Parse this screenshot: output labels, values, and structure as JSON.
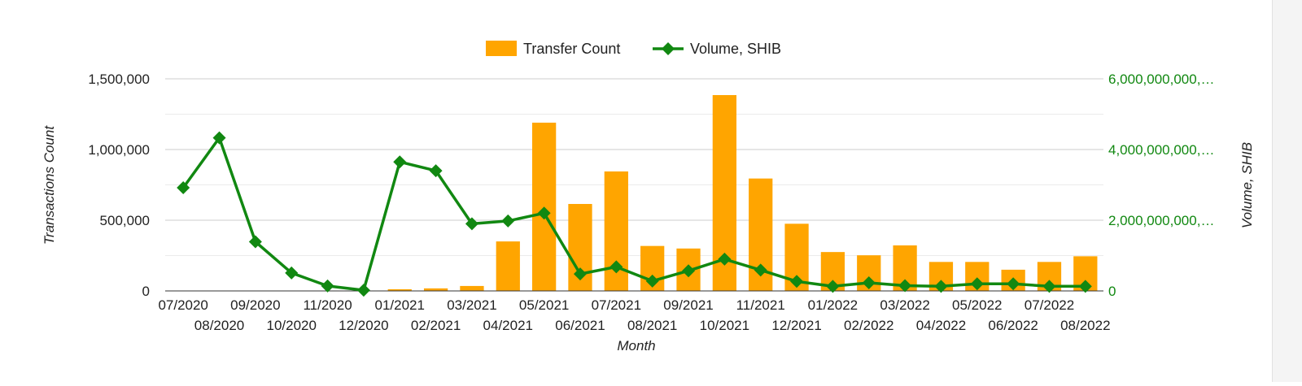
{
  "chart_data": {
    "type": "bar",
    "categories": [
      "07/2020",
      "08/2020",
      "09/2020",
      "10/2020",
      "11/2020",
      "12/2020",
      "01/2021",
      "02/2021",
      "03/2021",
      "04/2021",
      "05/2021",
      "06/2021",
      "07/2021",
      "08/2021",
      "09/2021",
      "10/2021",
      "11/2021",
      "12/2021",
      "01/2022",
      "02/2022",
      "03/2022",
      "04/2022",
      "05/2022",
      "06/2022",
      "07/2022",
      "08/2022"
    ],
    "series": [
      {
        "name": "Transfer Count",
        "type": "bar",
        "axis": "left",
        "color": "#ffa500",
        "values": [
          0,
          0,
          0,
          0,
          0,
          0,
          12000,
          18000,
          35000,
          350000,
          1190000,
          615000,
          845000,
          318000,
          300000,
          1385000,
          795000,
          475000,
          275000,
          252000,
          322000,
          205000,
          205000,
          150000,
          205000,
          245000
        ]
      },
      {
        "name": "Volume, SHIB",
        "type": "line",
        "axis": "right",
        "color": "#118811",
        "values": [
          2920000000,
          4330000000,
          1390000000,
          510000000,
          140000000,
          20000000,
          3650000000,
          3400000000,
          1900000000,
          1980000000,
          2200000000,
          480000000,
          680000000,
          280000000,
          570000000,
          900000000,
          590000000,
          270000000,
          130000000,
          230000000,
          150000000,
          130000000,
          200000000,
          200000000,
          130000000,
          130000000
        ]
      }
    ],
    "xlabel": "Month",
    "ylabel": "Transactions Count",
    "y2label": "Volume, SHIB",
    "ylim": [
      0,
      1500000
    ],
    "y2lim": [
      0,
      6000000000
    ],
    "yticks": [
      "0",
      "500,000",
      "1,000,000",
      "1,500,000"
    ],
    "y2ticks": [
      "0",
      "2,000,000,000,…",
      "4,000,000,000,…",
      "6,000,000,000,…"
    ],
    "grid": true,
    "legend_position": "top"
  }
}
